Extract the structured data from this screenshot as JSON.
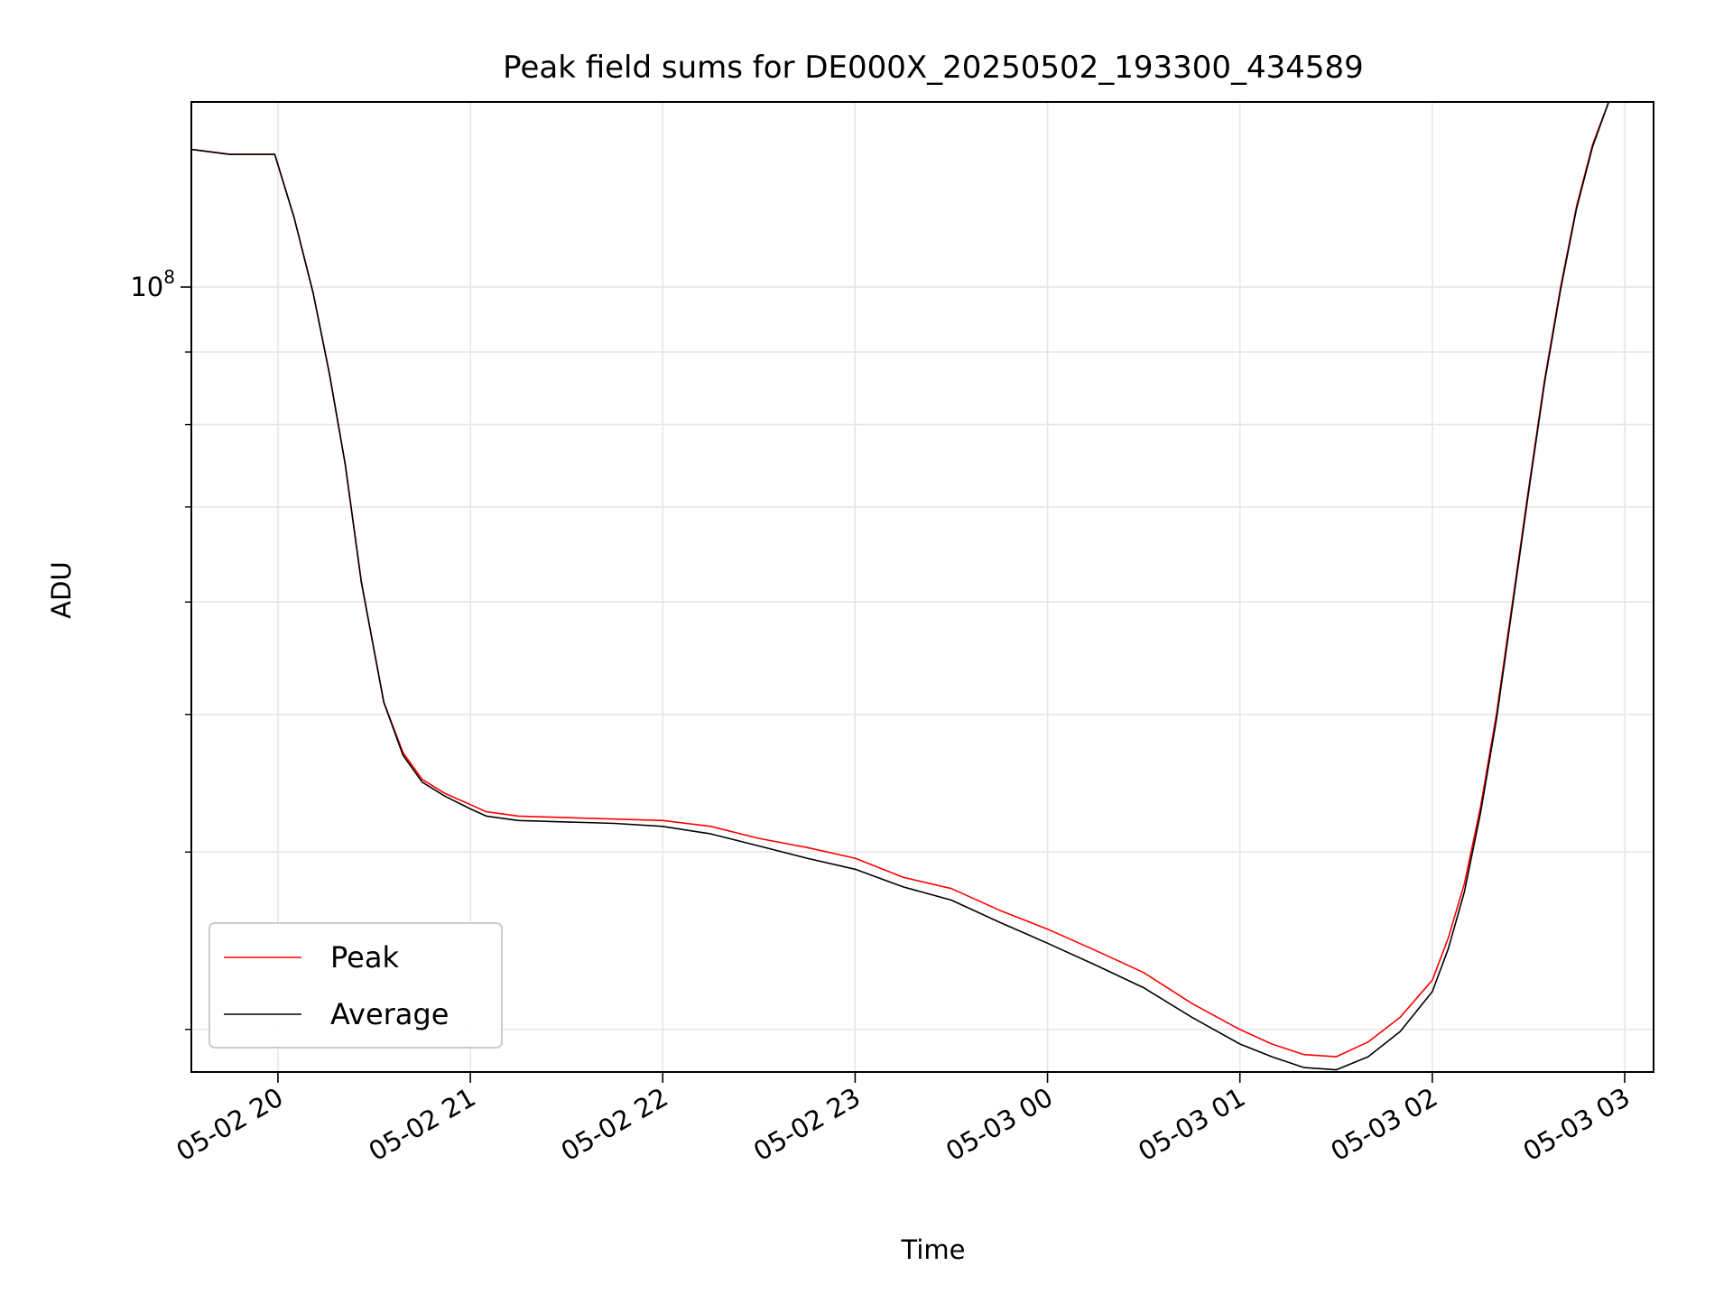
{
  "chart_data": {
    "type": "line",
    "title": "Peak field sums for DE000X_20250502_193300_434589",
    "xlabel": "Time",
    "ylabel": "ADU",
    "y_scale": "log",
    "grid": true,
    "legend_position": "lower-left",
    "x_tick_labels": [
      "05-02 20",
      "05-02 21",
      "05-02 22",
      "05-02 23",
      "05-03 00",
      "05-03 01",
      "05-03 02",
      "05-03 03"
    ],
    "x_ticks": [
      "2025-05-02 20:00",
      "2025-05-02 21:00",
      "2025-05-02 22:00",
      "2025-05-02 23:00",
      "2025-05-03 00:00",
      "2025-05-03 01:00",
      "2025-05-03 02:00",
      "2025-05-03 03:00"
    ],
    "xlim": [
      "2025-05-02 19:33",
      "2025-05-03 03:09"
    ],
    "ylim": [
      28000000,
      135000000
    ],
    "y_major_tick": 100000000,
    "y_major_tick_label": "10^8",
    "series": [
      {
        "name": "Peak",
        "color": "#ff0000",
        "x": [
          "2025-05-02 19:33",
          "2025-05-02 19:45",
          "2025-05-02 19:59",
          "2025-05-02 20:05",
          "2025-05-02 20:11",
          "2025-05-02 20:16",
          "2025-05-02 20:21",
          "2025-05-02 20:26",
          "2025-05-02 20:33",
          "2025-05-02 20:39",
          "2025-05-02 20:45",
          "2025-05-02 20:52",
          "2025-05-02 21:00",
          "2025-05-02 21:05",
          "2025-05-02 21:15",
          "2025-05-02 21:30",
          "2025-05-02 21:45",
          "2025-05-02 22:00",
          "2025-05-02 22:15",
          "2025-05-02 22:30",
          "2025-05-02 22:45",
          "2025-05-02 23:00",
          "2025-05-02 23:15",
          "2025-05-02 23:30",
          "2025-05-02 23:45",
          "2025-05-03 00:00",
          "2025-05-03 00:15",
          "2025-05-03 00:30",
          "2025-05-03 00:45",
          "2025-05-03 01:00",
          "2025-05-03 01:10",
          "2025-05-03 01:20",
          "2025-05-03 01:30",
          "2025-05-03 01:40",
          "2025-05-03 01:50",
          "2025-05-03 02:00",
          "2025-05-03 02:05",
          "2025-05-03 02:10",
          "2025-05-03 02:15",
          "2025-05-03 02:20",
          "2025-05-03 02:25",
          "2025-05-03 02:30",
          "2025-05-03 02:35",
          "2025-05-03 02:40",
          "2025-05-03 02:45",
          "2025-05-03 02:50",
          "2025-05-03 02:55"
        ],
        "values": [
          125000000,
          124000000,
          124000000,
          112000000,
          99000000,
          87000000,
          75000000,
          62000000,
          51000000,
          47000000,
          45000000,
          44000000,
          43200000,
          42700000,
          42400000,
          42300000,
          42200000,
          42100000,
          41700000,
          40900000,
          40300000,
          39600000,
          38400000,
          37700000,
          36400000,
          35300000,
          34100000,
          32900000,
          31300000,
          30000000,
          29300000,
          28800000,
          28700000,
          29400000,
          30600000,
          32500000,
          34800000,
          38000000,
          43000000,
          50000000,
          60000000,
          72000000,
          86000000,
          100000000,
          114000000,
          126000000,
          135000000
        ]
      },
      {
        "name": "Average",
        "color": "#000000",
        "x": [
          "2025-05-02 19:33",
          "2025-05-02 19:45",
          "2025-05-02 19:59",
          "2025-05-02 20:05",
          "2025-05-02 20:11",
          "2025-05-02 20:16",
          "2025-05-02 20:21",
          "2025-05-02 20:26",
          "2025-05-02 20:33",
          "2025-05-02 20:39",
          "2025-05-02 20:45",
          "2025-05-02 20:52",
          "2025-05-02 21:00",
          "2025-05-02 21:05",
          "2025-05-02 21:15",
          "2025-05-02 21:30",
          "2025-05-02 21:45",
          "2025-05-02 22:00",
          "2025-05-02 22:15",
          "2025-05-02 22:30",
          "2025-05-02 22:45",
          "2025-05-02 23:00",
          "2025-05-02 23:15",
          "2025-05-02 23:30",
          "2025-05-02 23:45",
          "2025-05-03 00:00",
          "2025-05-03 00:15",
          "2025-05-03 00:30",
          "2025-05-03 00:45",
          "2025-05-03 01:00",
          "2025-05-03 01:10",
          "2025-05-03 01:20",
          "2025-05-03 01:30",
          "2025-05-03 01:40",
          "2025-05-03 01:50",
          "2025-05-03 02:00",
          "2025-05-03 02:05",
          "2025-05-03 02:10",
          "2025-05-03 02:15",
          "2025-05-03 02:20",
          "2025-05-03 02:25",
          "2025-05-03 02:30",
          "2025-05-03 02:35",
          "2025-05-03 02:40",
          "2025-05-03 02:45",
          "2025-05-03 02:50",
          "2025-05-03 02:55"
        ],
        "values": [
          125000000,
          124000000,
          124000000,
          112000000,
          99000000,
          87000000,
          75000000,
          62000000,
          51000000,
          46800000,
          44800000,
          43800000,
          42900000,
          42400000,
          42100000,
          42000000,
          41900000,
          41700000,
          41200000,
          40400000,
          39600000,
          38900000,
          37800000,
          37000000,
          35700000,
          34500000,
          33300000,
          32100000,
          30600000,
          29300000,
          28700000,
          28200000,
          28100000,
          28700000,
          29900000,
          31900000,
          34200000,
          37500000,
          42600000,
          49600000,
          59600000,
          71600000,
          85600000,
          99600000,
          113600000,
          125600000,
          135000000
        ]
      }
    ]
  }
}
